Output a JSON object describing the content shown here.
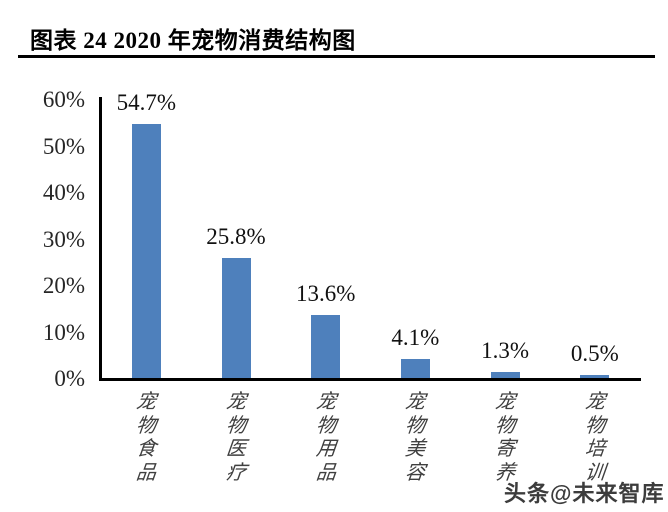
{
  "title": "图表 24 2020 年宠物消费结构图",
  "watermark": "头条@未来智库",
  "chart_data": {
    "type": "bar",
    "title": "2020 年宠物消费结构图",
    "categories": [
      "宠物食品",
      "宠物医疗",
      "宠物用品",
      "宠物美容",
      "宠物寄养",
      "宠物培训"
    ],
    "values": [
      54.7,
      25.8,
      13.6,
      4.1,
      1.3,
      0.5
    ],
    "data_labels": [
      "54.7%",
      "25.8%",
      "13.6%",
      "4.1%",
      "1.3%",
      "0.5%"
    ],
    "y_ticks": [
      "0%",
      "10%",
      "20%",
      "30%",
      "40%",
      "50%",
      "60%"
    ],
    "ylim": [
      0,
      60
    ],
    "xlabel": "",
    "ylabel": "",
    "grid": false,
    "legend": "none",
    "bar_color": "#4E80BC",
    "axis_color": "#000000"
  }
}
